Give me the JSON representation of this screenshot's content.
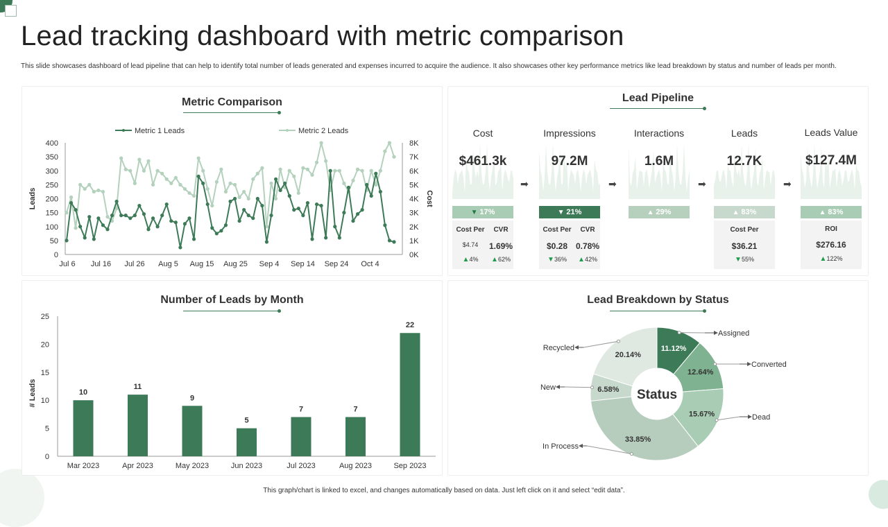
{
  "page": {
    "title": "Lead tracking dashboard with metric comparison",
    "description": "This slide showcases dashboard of lead pipeline that can help to identify total number of leads generated and expenses incurred to acquire the audience. It also showcases other key performance metrics like lead breakdown by status and number of leads per month.",
    "footer": "This graph/chart is linked to excel, and changes automatically based on data. Just left click on it and select “edit data”."
  },
  "colors": {
    "dark_green": "#3d7a57",
    "mid_green": "#7fb290",
    "light_green": "#a9cdb4",
    "pale_green": "#b6d0bd",
    "sage": "#c7d8cc",
    "very_pale": "#dfe9e2",
    "metric2_line": "#b3d1bc"
  },
  "metric_comparison": {
    "title": "Metric Comparison",
    "legend": [
      "Metric 1  Leads",
      "Metric 2  Leads"
    ]
  },
  "leads_by_month": {
    "title": "Number of Leads by Month"
  },
  "lead_pipeline": {
    "title": "Lead Pipeline",
    "columns": [
      {
        "label": "Cost",
        "value": "$461.3k",
        "badge": "17%",
        "badge_dir": "down",
        "badge_color": "#a9cdb4",
        "sub_headers": [
          "Cost Per",
          "CVR"
        ],
        "sub_values": [
          "$4.74",
          "1.69%"
        ],
        "sub_changes": [
          "4%",
          "62%"
        ],
        "sub_dirs": [
          "up",
          "up"
        ]
      },
      {
        "label": "Impressions",
        "value": "97.2M",
        "badge": "21%",
        "badge_dir": "down",
        "badge_color": "#3d7a57",
        "sub_headers": [
          "Cost Per",
          "CVR"
        ],
        "sub_values": [
          "$0.28",
          "0.78%"
        ],
        "sub_changes": [
          "36%",
          "42%"
        ],
        "sub_dirs": [
          "down",
          "up"
        ]
      },
      {
        "label": "Interactions",
        "value": "1.6M",
        "badge": "29%",
        "badge_dir": "up",
        "badge_color": "#b6d0bd"
      },
      {
        "label": "Leads",
        "value": "12.7K",
        "badge": "83%",
        "badge_dir": "up",
        "badge_color": "#c7d8cc",
        "sub_headers": [
          "Cost Per"
        ],
        "sub_values": [
          "$36.21"
        ],
        "sub_changes": [
          "55%"
        ],
        "sub_dirs": [
          "down"
        ]
      },
      {
        "label": "Leads Value",
        "value": "$127.4M",
        "badge": "83%",
        "badge_dir": "up",
        "badge_color": "#a9cdb4",
        "sub_headers": [
          "ROI"
        ],
        "sub_values": [
          "$276.16"
        ],
        "sub_changes": [
          "122%"
        ],
        "sub_dirs": [
          "up"
        ]
      }
    ]
  },
  "lead_breakdown": {
    "title": "Lead Breakdown by Status"
  },
  "chart_data": [
    {
      "type": "line",
      "title": "Metric Comparison",
      "xlabel": "",
      "ylabel": "Leads",
      "y2label": "Cost",
      "ylim": [
        0,
        400
      ],
      "y2lim": [
        0,
        8000
      ],
      "yticks": [
        0,
        50,
        100,
        150,
        200,
        250,
        300,
        350,
        400
      ],
      "y2ticks": [
        "0K",
        "1K",
        "2K",
        "3K",
        "4K",
        "5K",
        "6K",
        "7K",
        "8K"
      ],
      "xticks": [
        "Jul 6",
        "Jul 16",
        "Jul 26",
        "Aug 5",
        "Aug 15",
        "Aug 25",
        "Sep 4",
        "Sep 14",
        "Sep 24",
        "Oct 4"
      ],
      "x_start": "Jul 6",
      "x_end": "Oct 11",
      "grid": false,
      "legend_position": "top",
      "series": [
        {
          "name": "Metric 1  Leads",
          "axis": "left",
          "values": [
            50,
            185,
            160,
            100,
            60,
            135,
            55,
            130,
            105,
            90,
            140,
            190,
            140,
            140,
            130,
            140,
            175,
            145,
            90,
            130,
            100,
            140,
            180,
            120,
            115,
            25,
            110,
            130,
            55,
            280,
            255,
            180,
            95,
            75,
            85,
            105,
            190,
            200,
            120,
            160,
            140,
            130,
            200,
            175,
            45,
            140,
            270,
            230,
            255,
            210,
            160,
            165,
            140,
            185,
            55,
            180,
            175,
            60,
            300,
            100,
            60,
            150,
            240,
            120,
            145,
            160,
            250,
            210,
            290,
            225,
            105,
            50,
            45
          ]
        },
        {
          "name": "Metric 2  Leads",
          "axis": "left",
          "values": [
            150,
            205,
            95,
            250,
            235,
            250,
            225,
            230,
            225,
            135,
            120,
            165,
            345,
            305,
            300,
            255,
            340,
            300,
            335,
            250,
            300,
            290,
            270,
            255,
            275,
            250,
            235,
            220,
            210,
            345,
            300,
            235,
            175,
            260,
            305,
            225,
            255,
            250,
            205,
            225,
            200,
            270,
            290,
            310,
            100,
            255,
            200,
            305,
            240,
            300,
            280,
            220,
            310,
            305,
            285,
            330,
            400,
            335,
            230,
            300,
            300,
            255,
            225,
            265,
            305,
            300,
            230,
            300,
            250,
            300,
            370,
            400,
            350
          ]
        }
      ]
    },
    {
      "type": "bar",
      "title": "Number of Leads by Month",
      "xlabel": "",
      "ylabel": "# Leads",
      "ylim": [
        0,
        25
      ],
      "yticks": [
        0,
        5,
        10,
        15,
        20,
        25
      ],
      "grid": false,
      "categories": [
        "Mar 2023",
        "Apr 2023",
        "May 2023",
        "Jun 2023",
        "Jul 2023",
        "Aug 2023",
        "Sep 2023"
      ],
      "values": [
        10,
        11,
        9,
        5,
        7,
        7,
        22
      ],
      "labels": [
        "10",
        "11",
        "9",
        "5",
        "7",
        "7",
        "22"
      ]
    },
    {
      "type": "pie",
      "title": "Lead Breakdown by Status",
      "center_label": "Status",
      "slices": [
        {
          "label": "Assigned",
          "value": 11.12,
          "value_label": "11.12%",
          "color": "#3d7a57"
        },
        {
          "label": "Converted",
          "value": 12.64,
          "value_label": "12.64%",
          "color": "#7fb290"
        },
        {
          "label": "Dead",
          "value": 15.67,
          "value_label": "15.67%",
          "color": "#a9cdb4"
        },
        {
          "label": "In Process",
          "value": 33.85,
          "value_label": "33.85%",
          "color": "#b6cdbd"
        },
        {
          "label": "New",
          "value": 6.58,
          "value_label": "6.58%",
          "color": "#c7d8cc"
        },
        {
          "label": "Recycled",
          "value": 20.14,
          "value_label": "20.14%",
          "color": "#dfe9e2"
        }
      ]
    }
  ]
}
